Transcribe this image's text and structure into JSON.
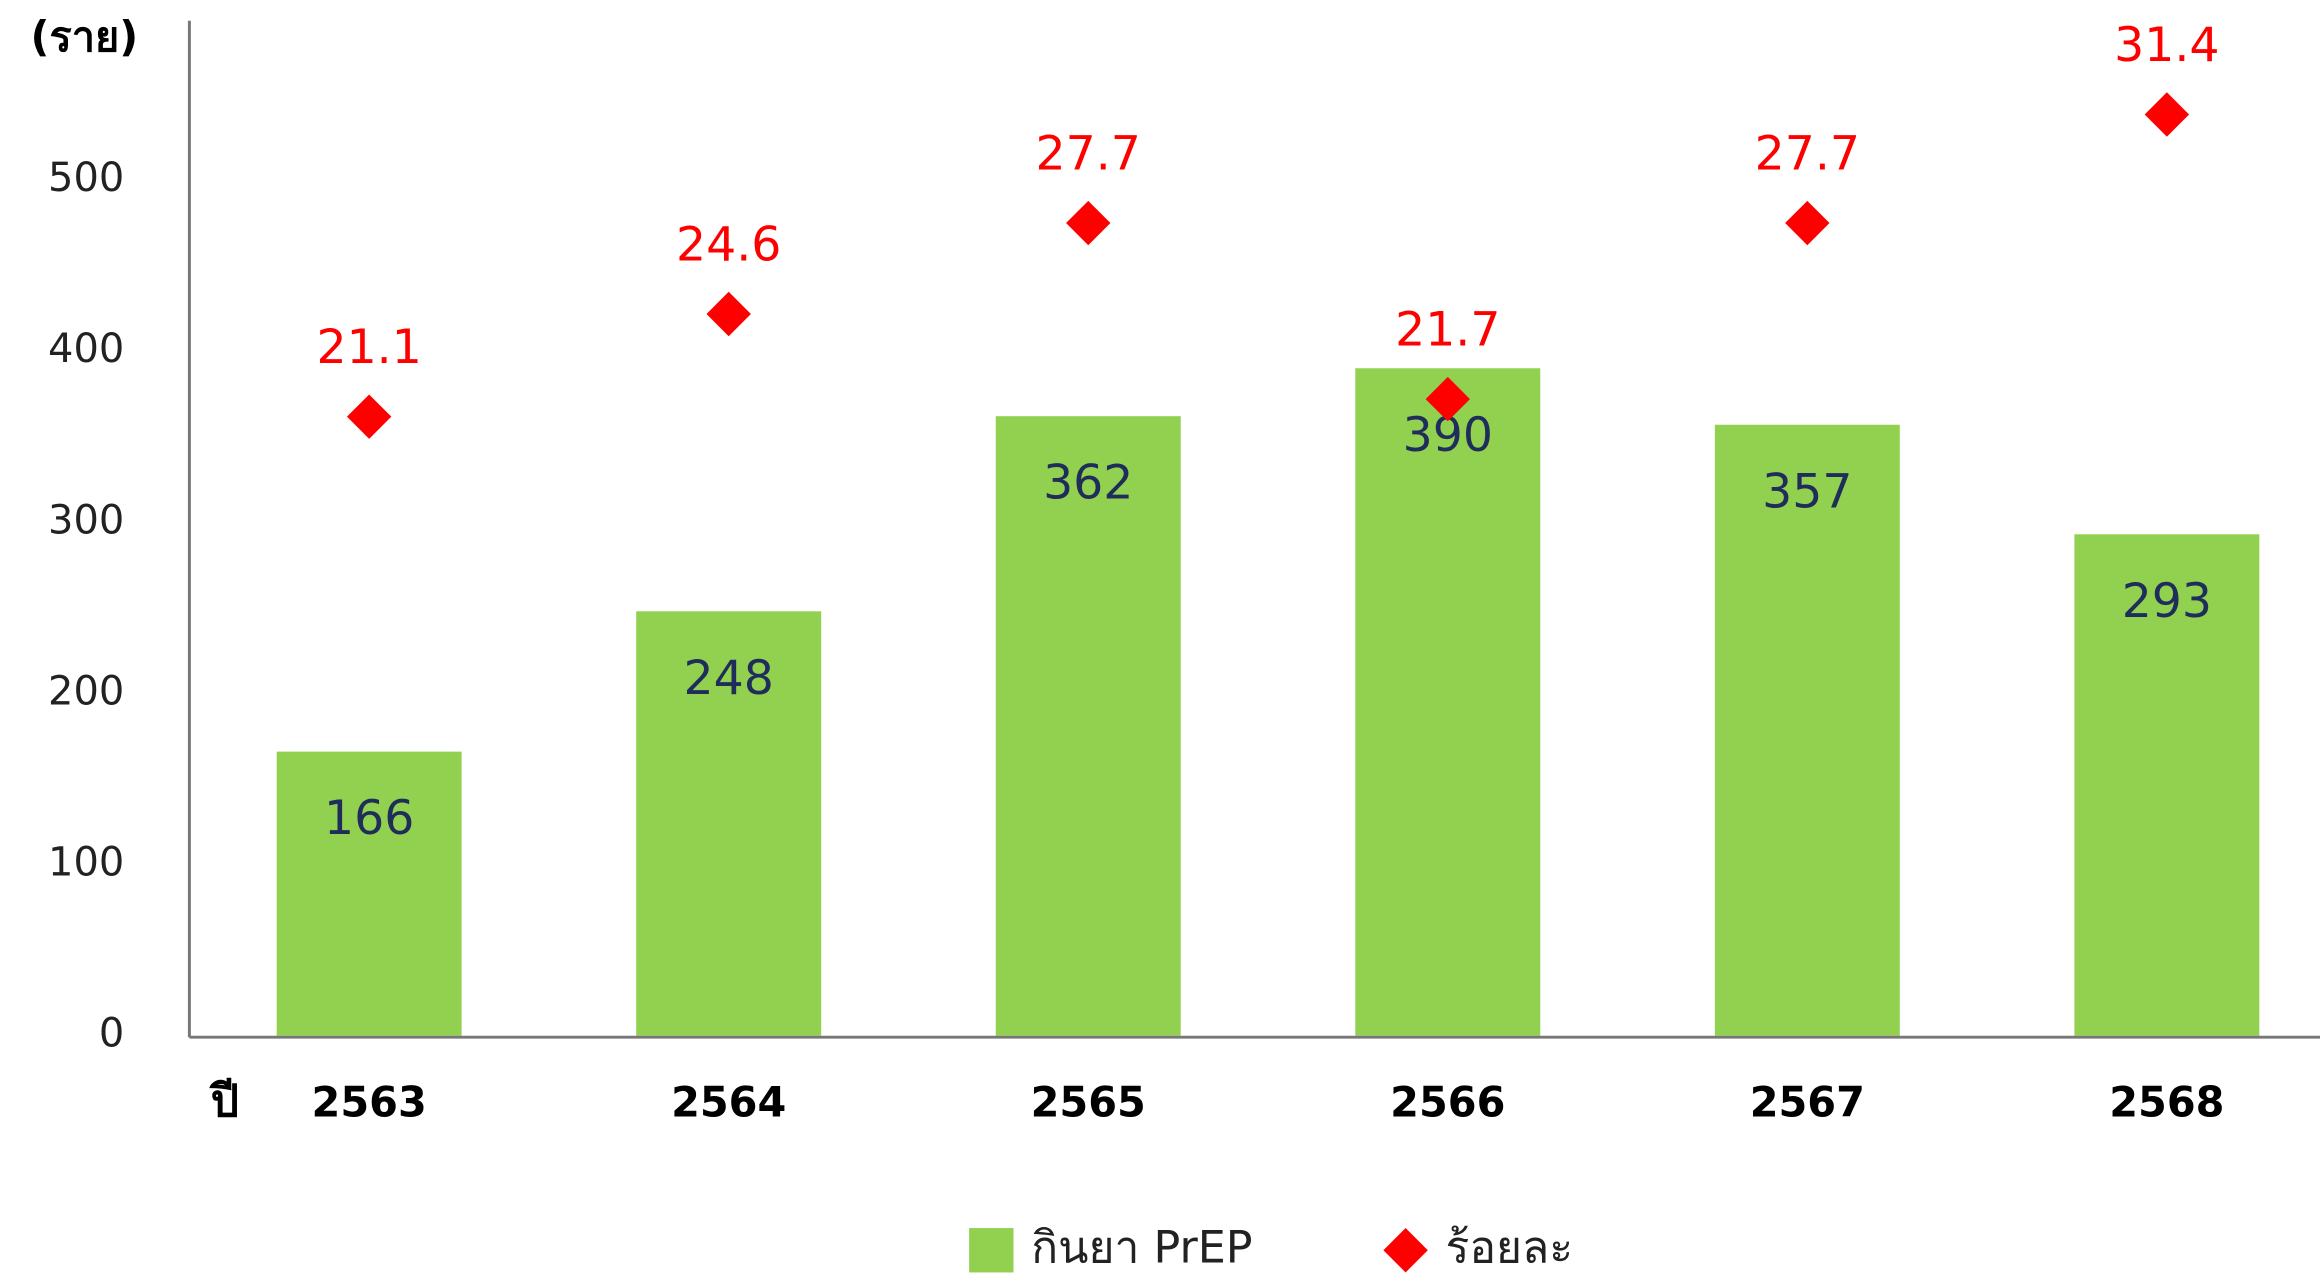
{
  "chart_data": {
    "type": "bar",
    "y_label": "(ราย)",
    "x_label": "ปี",
    "categories": [
      "2563",
      "2564",
      "2565",
      "2566",
      "2567",
      "2568"
    ],
    "series": [
      {
        "name": "กินยา PrEP",
        "type": "bar",
        "color": "#92d050",
        "values": [
          166,
          248,
          362,
          390,
          357,
          293
        ]
      },
      {
        "name": "ร้อยละ",
        "type": "scatter",
        "axis": "y2",
        "color": "#ff0000",
        "values": [
          21.1,
          24.6,
          27.7,
          21.7,
          27.7,
          31.4
        ]
      }
    ],
    "ylim": [
      0,
      600
    ],
    "yticks": [
      0,
      100,
      200,
      300,
      400,
      500
    ],
    "y2lim": [
      0,
      35
    ],
    "legend": "bottom"
  }
}
